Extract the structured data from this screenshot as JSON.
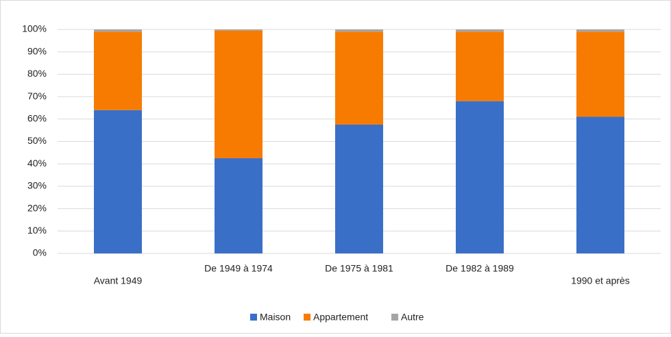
{
  "chart_data": {
    "type": "stacked_bar",
    "categories": [
      "Avant 1949",
      "De 1949 à 1974",
      "De 1975 à 1981",
      "De 1982 à 1989",
      "1990 et après"
    ],
    "series": [
      {
        "name": "Maison",
        "color": "#3a6fc8",
        "values": [
          64,
          42.5,
          57.5,
          68,
          61
        ]
      },
      {
        "name": "Appartement",
        "color": "#f77b00",
        "values": [
          35,
          57,
          41.5,
          31,
          38
        ]
      },
      {
        "name": "Autre",
        "color": "#a5a5a5",
        "values": [
          1,
          0.5,
          1,
          1,
          1
        ]
      }
    ],
    "ylim": [
      0,
      100
    ],
    "yticks": [
      {
        "value": 0,
        "label": "0%"
      },
      {
        "value": 10,
        "label": "10%"
      },
      {
        "value": 20,
        "label": "20%"
      },
      {
        "value": 30,
        "label": "30%"
      },
      {
        "value": 40,
        "label": "40%"
      },
      {
        "value": 50,
        "label": "50%"
      },
      {
        "value": 60,
        "label": "60%"
      },
      {
        "value": 70,
        "label": "70%"
      },
      {
        "value": 80,
        "label": "80%"
      },
      {
        "value": 90,
        "label": "90%"
      },
      {
        "value": 100,
        "label": "100%"
      }
    ],
    "grid": true,
    "legend": "bottom"
  }
}
